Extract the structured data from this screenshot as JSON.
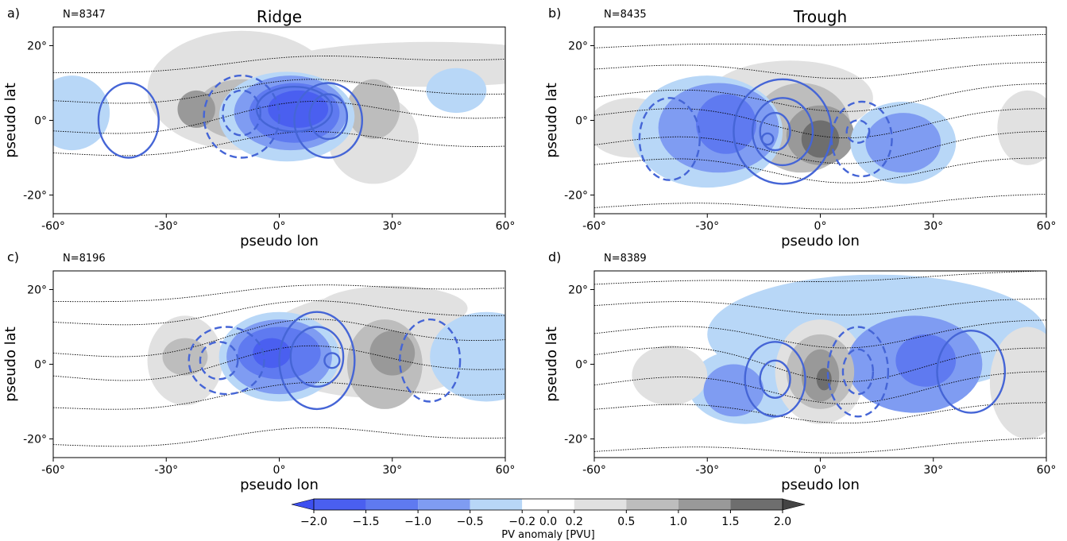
{
  "chart_data": [
    {
      "type": "contour",
      "panel_label": "a)",
      "count_label": "N=8347",
      "title": "Ridge",
      "xlabel": "pseudo lon",
      "ylabel": "pseudo lat",
      "xlim": [
        -60,
        60
      ],
      "ylim": [
        -25,
        25
      ],
      "xticks": [
        "-60°",
        "-30°",
        "0°",
        "30°",
        "60°"
      ],
      "yticks": [
        "20°",
        "0°",
        "-20°"
      ]
    },
    {
      "type": "contour",
      "panel_label": "b)",
      "count_label": "N=8435",
      "title": "Trough",
      "xlabel": "pseudo lon",
      "ylabel": "pseudo lat",
      "xlim": [
        -60,
        60
      ],
      "ylim": [
        -25,
        25
      ],
      "xticks": [
        "-60°",
        "-30°",
        "0°",
        "30°",
        "60°"
      ],
      "yticks": [
        "20°",
        "0°",
        "-20°"
      ]
    },
    {
      "type": "contour",
      "panel_label": "c)",
      "count_label": "N=8196",
      "title": "",
      "xlabel": "pseudo lon",
      "ylabel": "pseudo lat",
      "xlim": [
        -60,
        60
      ],
      "ylim": [
        -25,
        25
      ],
      "xticks": [
        "-60°",
        "-30°",
        "0°",
        "30°",
        "60°"
      ],
      "yticks": [
        "20°",
        "0°",
        "-20°"
      ]
    },
    {
      "type": "contour",
      "panel_label": "d)",
      "count_label": "N=8389",
      "title": "",
      "xlabel": "pseudo lon",
      "ylabel": "pseudo lat",
      "xlim": [
        -60,
        60
      ],
      "ylim": [
        -25,
        25
      ],
      "xticks": [
        "-60°",
        "-30°",
        "0°",
        "30°",
        "60°"
      ],
      "yticks": [
        "20°",
        "0°",
        "-20°"
      ]
    }
  ],
  "colorbar": {
    "label": "PV anomaly [PVU]",
    "ticks": [
      "−2.0",
      "−1.5",
      "−1.0",
      "−0.5",
      "−0.2",
      "0.0",
      "0.2",
      "0.5",
      "1.0",
      "1.5",
      "2.0"
    ],
    "bins": [
      {
        "range": [
          -2.0,
          -1.5
        ],
        "color": "#4a5ff0"
      },
      {
        "range": [
          -1.5,
          -1.0
        ],
        "color": "#5f7af0"
      },
      {
        "range": [
          -1.0,
          -0.5
        ],
        "color": "#7f9cf2"
      },
      {
        "range": [
          -0.5,
          -0.2
        ],
        "color": "#b8d7f7"
      },
      {
        "range": [
          -0.2,
          0.2
        ],
        "color": "#ffffff"
      },
      {
        "range": [
          0.2,
          0.5
        ],
        "color": "#e1e1e1"
      },
      {
        "range": [
          0.5,
          1.0
        ],
        "color": "#bdbdbd"
      },
      {
        "range": [
          1.0,
          1.5
        ],
        "color": "#999999"
      },
      {
        "range": [
          1.5,
          2.0
        ],
        "color": "#6e6e6e"
      }
    ],
    "under_color": "#3d4ff0",
    "over_color": "#444444"
  },
  "colors": {
    "contour_line": "#4565d6",
    "streamline": "#000000"
  }
}
